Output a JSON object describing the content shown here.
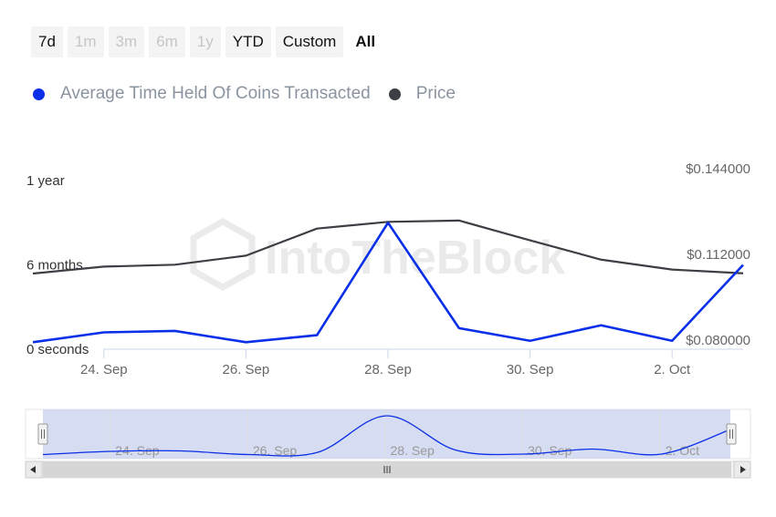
{
  "range_selector": {
    "buttons": [
      {
        "label": "7d",
        "state": "normal"
      },
      {
        "label": "1m",
        "state": "disabled"
      },
      {
        "label": "3m",
        "state": "disabled"
      },
      {
        "label": "6m",
        "state": "disabled"
      },
      {
        "label": "1y",
        "state": "disabled"
      },
      {
        "label": "YTD",
        "state": "normal"
      },
      {
        "label": "Custom",
        "state": "normal"
      },
      {
        "label": "All",
        "state": "active"
      }
    ]
  },
  "legend": [
    {
      "label": "Average Time Held Of Coins Transacted",
      "color": "#0a2fe8"
    },
    {
      "label": "Price",
      "color": "#3c3f44"
    }
  ],
  "watermark": "IntoTheBlock",
  "navigator": {
    "x_ticks": [
      "24. Sep",
      "26. Sep",
      "28. Sep",
      "30. Sep",
      "2. Oct"
    ],
    "grip_icon": "grip-lines-icon",
    "left_arrow_icon": "triangle-left-icon",
    "right_arrow_icon": "triangle-right-icon"
  },
  "colors": {
    "series_time_held": "#0a2fe8",
    "series_price": "#3c3f44",
    "navigator_fill": "#cfd6ee",
    "axis_text": "#666666",
    "scrollbar": "#d6d6d6"
  },
  "chart_data": {
    "type": "line",
    "x": [
      "23. Sep",
      "24. Sep",
      "25. Sep",
      "26. Sep",
      "27. Sep",
      "28. Sep",
      "29. Sep",
      "30. Sep",
      "1. Oct",
      "2. Oct",
      "3. Oct"
    ],
    "x_tick_labels": [
      "24. Sep",
      "26. Sep",
      "28. Sep",
      "30. Sep",
      "2. Oct"
    ],
    "series": [
      {
        "name": "Average Time Held Of Coins Transacted",
        "color": "#0a2fe8",
        "axis": "left",
        "values_months": [
          0.5,
          1.2,
          1.3,
          0.5,
          1.0,
          9.0,
          1.5,
          0.6,
          1.7,
          0.6,
          6.0
        ]
      },
      {
        "name": "Price",
        "color": "#3c3f44",
        "axis": "right",
        "values": [
          0.1045,
          0.1071,
          0.1078,
          0.1112,
          0.1213,
          0.1238,
          0.1243,
          0.1169,
          0.1097,
          0.106,
          0.1046
        ]
      }
    ],
    "y_left": {
      "tick_labels": [
        "0 seconds",
        "6 months",
        "1 year"
      ],
      "ylim_months": [
        0,
        12
      ]
    },
    "y_right": {
      "tick_labels": [
        "$0.080000",
        "$0.112000",
        "$0.144000"
      ],
      "ylim": [
        0.08,
        0.144
      ]
    },
    "grid": false,
    "legend_position": "top-left"
  }
}
